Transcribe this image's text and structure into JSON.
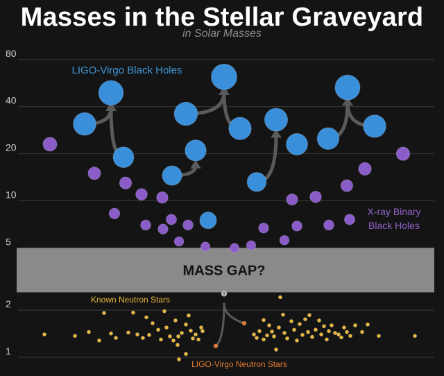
{
  "header": {
    "title": "Masses in the Stellar Graveyard",
    "subtitle": "in Solar Masses"
  },
  "colors": {
    "background": "#141414",
    "ligo_bh": "#3a8fdb",
    "xray_bh": "#8a5cc8",
    "neutron_star": "#e8b73a",
    "ligo_ns": "#e0742a",
    "mass_gap": "#8a8a8a",
    "arrow": "#5a5a5a"
  },
  "chart_data": {
    "type": "scatter",
    "title": "Masses in the Stellar Graveyard",
    "subtitle": "in Solar Masses",
    "y_scale": "log",
    "ylim": [
      0.9,
      100
    ],
    "y_ticks": [
      1,
      2,
      5,
      10,
      20,
      40,
      80
    ],
    "grid": true,
    "mass_gap": {
      "range": [
        2.6,
        5
      ],
      "label": "MASS GAP?"
    },
    "series": [
      {
        "name": "LIGO-Virgo Black Holes",
        "label_color": "#3f97d8",
        "points": [
          {
            "x": 122,
            "y": 31
          },
          {
            "x": 178,
            "y": 19
          },
          {
            "x": 160,
            "y": 49
          },
          {
            "x": 248,
            "y": 14.5
          },
          {
            "x": 282,
            "y": 21
          },
          {
            "x": 300,
            "y": 7.5
          },
          {
            "x": 268,
            "y": 36
          },
          {
            "x": 346,
            "y": 29
          },
          {
            "x": 323,
            "y": 62
          },
          {
            "x": 370,
            "y": 13.2
          },
          {
            "x": 398,
            "y": 33
          },
          {
            "x": 428,
            "y": 23
          },
          {
            "x": 473,
            "y": 25
          },
          {
            "x": 540,
            "y": 30
          },
          {
            "x": 501,
            "y": 53
          }
        ]
      },
      {
        "name": "X-ray Binary Black Holes",
        "label_color": "#9063c9",
        "points": [
          {
            "x": 72,
            "y": 23
          },
          {
            "x": 136,
            "y": 15
          },
          {
            "x": 181,
            "y": 13
          },
          {
            "x": 204,
            "y": 11
          },
          {
            "x": 234,
            "y": 10.5
          },
          {
            "x": 165,
            "y": 8.3
          },
          {
            "x": 210,
            "y": 7
          },
          {
            "x": 247,
            "y": 7.6
          },
          {
            "x": 271,
            "y": 7
          },
          {
            "x": 235,
            "y": 6.6
          },
          {
            "x": 258,
            "y": 5.5
          },
          {
            "x": 296,
            "y": 5.1
          },
          {
            "x": 338,
            "y": 5
          },
          {
            "x": 362,
            "y": 5.2
          },
          {
            "x": 380,
            "y": 6.7
          },
          {
            "x": 410,
            "y": 5.6
          },
          {
            "x": 428,
            "y": 6.9
          },
          {
            "x": 421,
            "y": 10.2
          },
          {
            "x": 455,
            "y": 10.6
          },
          {
            "x": 474,
            "y": 7
          },
          {
            "x": 504,
            "y": 7.6
          },
          {
            "x": 500,
            "y": 12.5
          },
          {
            "x": 526,
            "y": 16
          },
          {
            "x": 581,
            "y": 20
          }
        ]
      },
      {
        "name": "Known Neutron Stars",
        "label_color": "#e8b73a",
        "points": [
          {
            "x": 64,
            "y": 1.4
          },
          {
            "x": 108,
            "y": 1.37
          },
          {
            "x": 128,
            "y": 1.45
          },
          {
            "x": 143,
            "y": 1.28
          },
          {
            "x": 150,
            "y": 1.92
          },
          {
            "x": 160,
            "y": 1.42
          },
          {
            "x": 167,
            "y": 1.33
          },
          {
            "x": 185,
            "y": 1.44
          },
          {
            "x": 192,
            "y": 1.93
          },
          {
            "x": 198,
            "y": 1.4
          },
          {
            "x": 206,
            "y": 1.33
          },
          {
            "x": 211,
            "y": 1.8
          },
          {
            "x": 215,
            "y": 1.39
          },
          {
            "x": 220,
            "y": 1.65
          },
          {
            "x": 228,
            "y": 1.5
          },
          {
            "x": 232,
            "y": 1.3
          },
          {
            "x": 237,
            "y": 1.97
          },
          {
            "x": 240,
            "y": 1.55
          },
          {
            "x": 245,
            "y": 1.36
          },
          {
            "x": 250,
            "y": 1.28
          },
          {
            "x": 253,
            "y": 1.72
          },
          {
            "x": 257,
            "y": 1.36
          },
          {
            "x": 262,
            "y": 1.43
          },
          {
            "x": 268,
            "y": 1.62
          },
          {
            "x": 272,
            "y": 1.85
          },
          {
            "x": 275,
            "y": 1.48
          },
          {
            "x": 278,
            "y": 1.32
          },
          {
            "x": 282,
            "y": 1.4
          },
          {
            "x": 286,
            "y": 1.3
          },
          {
            "x": 290,
            "y": 1.55
          },
          {
            "x": 292,
            "y": 1.47
          },
          {
            "x": 256,
            "y": 1.2
          },
          {
            "x": 268,
            "y": 1.05
          },
          {
            "x": 258,
            "y": 0.97
          },
          {
            "x": 366,
            "y": 1.4
          },
          {
            "x": 370,
            "y": 1.33
          },
          {
            "x": 374,
            "y": 1.47
          },
          {
            "x": 380,
            "y": 1.73
          },
          {
            "x": 380,
            "y": 1.3
          },
          {
            "x": 385,
            "y": 1.38
          },
          {
            "x": 388,
            "y": 1.6
          },
          {
            "x": 392,
            "y": 1.46
          },
          {
            "x": 395,
            "y": 1.36
          },
          {
            "x": 398,
            "y": 1.12
          },
          {
            "x": 402,
            "y": 1.55
          },
          {
            "x": 404,
            "y": 2.42
          },
          {
            "x": 408,
            "y": 1.87
          },
          {
            "x": 410,
            "y": 1.43
          },
          {
            "x": 414,
            "y": 1.32
          },
          {
            "x": 420,
            "y": 1.7
          },
          {
            "x": 424,
            "y": 1.5
          },
          {
            "x": 428,
            "y": 1.28
          },
          {
            "x": 432,
            "y": 1.63
          },
          {
            "x": 436,
            "y": 1.39
          },
          {
            "x": 440,
            "y": 1.75
          },
          {
            "x": 444,
            "y": 1.45
          },
          {
            "x": 446,
            "y": 1.86
          },
          {
            "x": 450,
            "y": 1.35
          },
          {
            "x": 455,
            "y": 1.5
          },
          {
            "x": 460,
            "y": 1.72
          },
          {
            "x": 463,
            "y": 1.4
          },
          {
            "x": 467,
            "y": 1.58
          },
          {
            "x": 471,
            "y": 1.3
          },
          {
            "x": 474,
            "y": 1.47
          },
          {
            "x": 478,
            "y": 1.6
          },
          {
            "x": 483,
            "y": 1.43
          },
          {
            "x": 488,
            "y": 1.4
          },
          {
            "x": 492,
            "y": 1.34
          },
          {
            "x": 496,
            "y": 1.55
          },
          {
            "x": 500,
            "y": 1.45
          },
          {
            "x": 505,
            "y": 1.37
          },
          {
            "x": 512,
            "y": 1.6
          },
          {
            "x": 522,
            "y": 1.45
          },
          {
            "x": 530,
            "y": 1.62
          },
          {
            "x": 546,
            "y": 1.37
          },
          {
            "x": 598,
            "y": 1.37
          }
        ]
      },
      {
        "name": "LIGO-Virgo Neutron Stars",
        "label_color": "#e07a2f",
        "points": [
          {
            "x": 311,
            "y": 1.18
          },
          {
            "x": 352,
            "y": 1.65
          },
          {
            "x": 323,
            "y": 2.55
          }
        ]
      }
    ],
    "mergers": [
      {
        "from": [
          0,
          1
        ],
        "to": 2
      },
      {
        "from": [
          3,
          4
        ],
        "to": 4
      },
      {
        "from": [
          6,
          7
        ],
        "to": 8
      },
      {
        "from": [
          9,
          10
        ],
        "to": 10
      },
      {
        "from": [
          12,
          13
        ],
        "to": 14
      }
    ],
    "ns_merger": {
      "from": [
        0,
        1
      ],
      "to": 2
    },
    "annotations": [
      {
        "text": "LIGO-Virgo Black Holes"
      },
      {
        "text": "X-ray Binary"
      },
      {
        "text": "Black Holes"
      },
      {
        "text": "Known Neutron Stars"
      },
      {
        "text": "LIGO-Virgo Neutron Stars"
      },
      {
        "text": "?"
      }
    ]
  }
}
